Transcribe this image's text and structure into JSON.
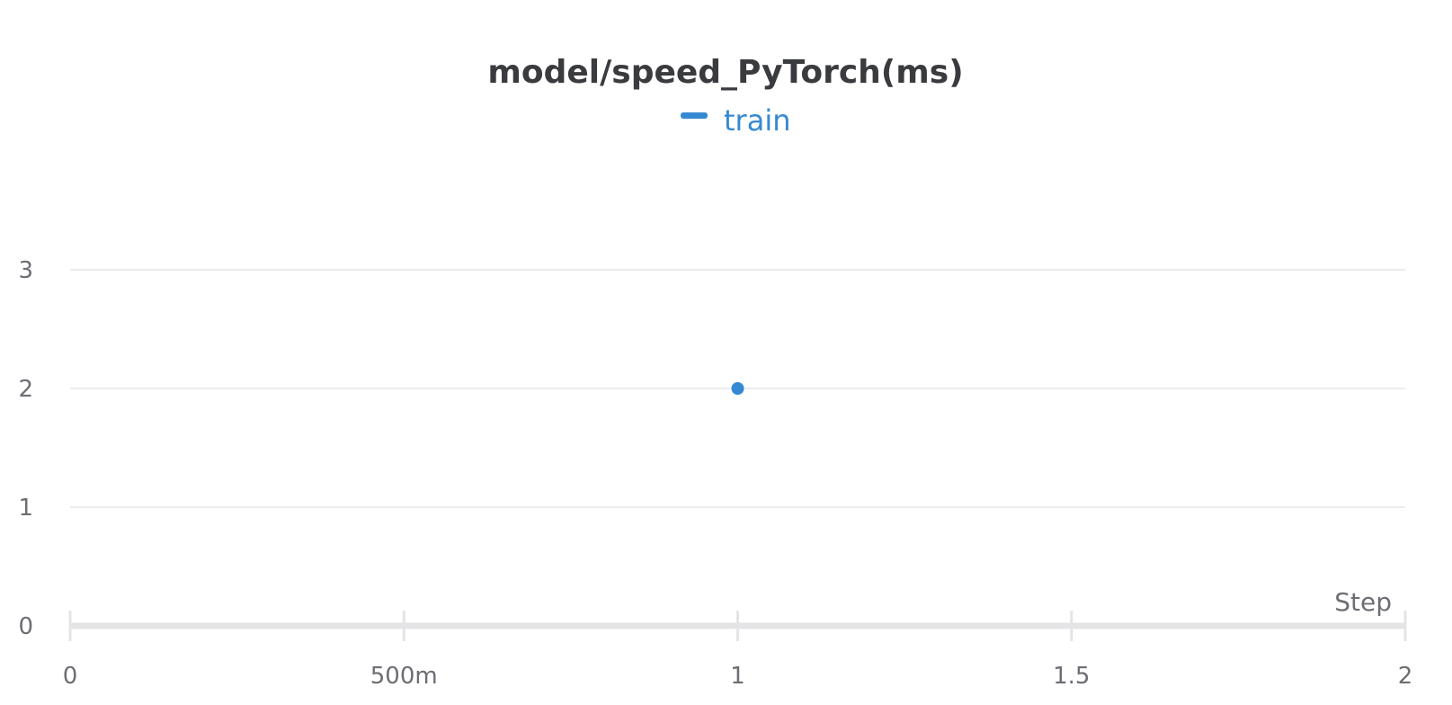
{
  "chart_data": {
    "type": "line",
    "title": "model/speed_PyTorch(ms)",
    "xlabel": "Step",
    "ylabel": "",
    "xlim": [
      0,
      2
    ],
    "ylim": [
      0,
      3
    ],
    "x_ticks": [
      {
        "value": 0,
        "label": "0"
      },
      {
        "value": 0.5,
        "label": "500m"
      },
      {
        "value": 1,
        "label": "1"
      },
      {
        "value": 1.5,
        "label": "1.5"
      },
      {
        "value": 2,
        "label": "2"
      }
    ],
    "y_ticks": [
      {
        "value": 0,
        "label": "0"
      },
      {
        "value": 1,
        "label": "1"
      },
      {
        "value": 2,
        "label": "2"
      },
      {
        "value": 3,
        "label": "3"
      }
    ],
    "grid": true,
    "legend": "top-center",
    "series": [
      {
        "name": "train",
        "color": "#3589d3",
        "points": [
          {
            "x": 1,
            "y": 2
          }
        ]
      }
    ]
  }
}
